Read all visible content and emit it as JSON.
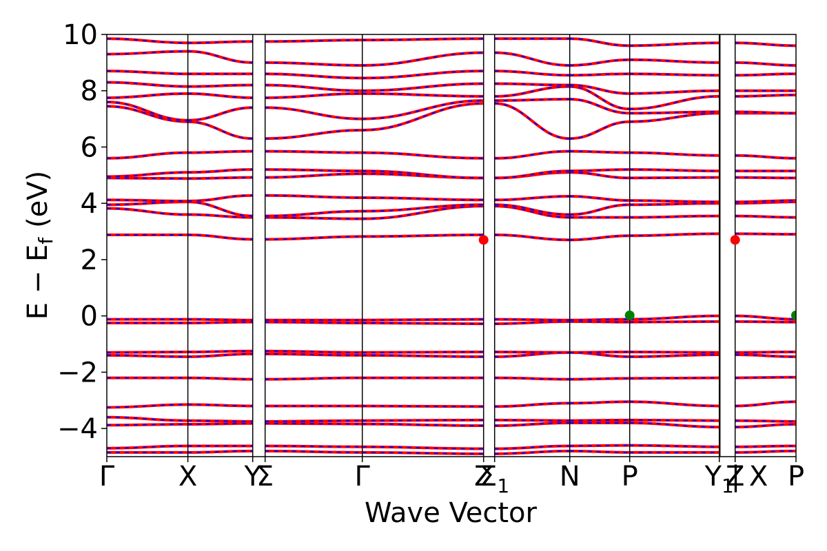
{
  "chart_data": {
    "type": "line",
    "title": "",
    "xlabel": "Wave Vector",
    "ylabel": "E − E",
    "ylabel_subscript": "f",
    "ylabel_unit": "(eV)",
    "ylim": [
      -5,
      10
    ],
    "yticks": [
      -4,
      -2,
      0,
      2,
      4,
      6,
      8,
      10
    ],
    "ytick_labels": [
      "−4",
      "−2",
      "0",
      "2",
      "4",
      "6",
      "8",
      "10"
    ],
    "xlim": [
      0,
      1
    ],
    "kpoints": [
      {
        "label": "Γ",
        "sub": "",
        "x": 0.0
      },
      {
        "label": "X",
        "sub": "",
        "x": 0.1176
      },
      {
        "label": "Y",
        "sub": "",
        "x": 0.2117
      },
      {
        "label": "Σ",
        "sub": "",
        "x": 0.2297
      },
      {
        "label": "Γ",
        "sub": "",
        "x": 0.3707
      },
      {
        "label": "Z",
        "sub": "",
        "x": 0.5467
      },
      {
        "label": "Σ",
        "sub": "1",
        "x": 0.5627
      },
      {
        "label": "N",
        "sub": "",
        "x": 0.6717
      },
      {
        "label": "P",
        "sub": "",
        "x": 0.7587
      },
      {
        "label": "Y",
        "sub": "1",
        "x": 0.8887
      },
      {
        "label": "Z",
        "sub": "",
        "x": 0.9117
      },
      {
        "label": "| X",
        "sub": "",
        "x": 0.9117
      },
      {
        "label": "P",
        "sub": "",
        "x": 1.0
      }
    ],
    "series": [
      {
        "color": "#ff0000",
        "style": "solid",
        "width": 4
      },
      {
        "color": "#0000ff",
        "style": "dashed",
        "width": 2
      }
    ],
    "band_segments": [
      [
        0.0,
        0.1176
      ],
      [
        0.1176,
        0.2117
      ],
      [
        0.2297,
        0.3707
      ],
      [
        0.3707,
        0.5467
      ],
      [
        0.5627,
        0.6717
      ],
      [
        0.6717,
        0.7587
      ],
      [
        0.7587,
        0.8887
      ],
      [
        0.9117,
        1.0
      ]
    ],
    "bands": [
      [
        -4.85,
        -4.85,
        -4.8,
        -4.85,
        -4.9,
        -4.8,
        -4.85,
        -4.85,
        -4.8
      ],
      [
        -4.7,
        -4.62,
        -4.62,
        -4.65,
        -4.72,
        -4.62,
        -4.6,
        -4.65,
        -4.62
      ],
      [
        -3.88,
        -3.85,
        -3.82,
        -3.84,
        -3.9,
        -3.8,
        -3.8,
        -3.95,
        -3.85
      ],
      [
        -3.6,
        -3.72,
        -3.75,
        -3.72,
        -3.7,
        -3.72,
        -3.7,
        -3.72,
        -3.75
      ],
      [
        -3.25,
        -3.15,
        -3.2,
        -3.2,
        -3.22,
        -3.1,
        -3.05,
        -3.2,
        -3.05
      ],
      [
        -2.2,
        -2.2,
        -2.25,
        -2.2,
        -2.2,
        -2.25,
        -2.22,
        -2.2,
        -2.18
      ],
      [
        -1.4,
        -1.45,
        -1.35,
        -1.4,
        -1.45,
        -1.3,
        -1.45,
        -1.38,
        -1.45
      ],
      [
        -1.3,
        -1.28,
        -1.25,
        -1.3,
        -1.28,
        -1.3,
        -1.28,
        -1.3,
        -1.28
      ],
      [
        -0.25,
        -0.25,
        -0.22,
        -0.25,
        -0.28,
        -0.2,
        -0.22,
        -0.2,
        -0.22
      ],
      [
        -0.12,
        -0.12,
        -0.15,
        -0.15,
        -0.12,
        -0.15,
        -0.12,
        0.0,
        -0.12
      ],
      [
        2.88,
        2.88,
        2.72,
        2.82,
        2.88,
        2.7,
        2.85,
        2.92,
        2.9
      ],
      [
        3.82,
        3.6,
        3.5,
        3.45,
        3.9,
        3.5,
        3.5,
        3.55,
        3.5
      ],
      [
        3.95,
        4.05,
        3.55,
        3.72,
        3.95,
        3.6,
        3.95,
        4.0,
        4.05
      ],
      [
        4.12,
        4.08,
        4.28,
        4.2,
        4.12,
        4.25,
        4.1,
        4.05,
        4.1
      ],
      [
        4.9,
        4.88,
        4.92,
        5.05,
        4.9,
        5.1,
        4.9,
        4.92,
        4.9
      ],
      [
        4.95,
        5.1,
        5.2,
        5.15,
        4.9,
        5.15,
        5.2,
        5.15,
        5.15
      ],
      [
        5.6,
        5.8,
        5.85,
        5.8,
        5.6,
        5.85,
        5.8,
        5.7,
        5.6
      ],
      [
        7.45,
        6.9,
        6.3,
        6.6,
        7.55,
        6.3,
        6.9,
        7.2,
        7.2
      ],
      [
        7.6,
        6.95,
        7.4,
        7.0,
        7.65,
        7.7,
        7.2,
        7.25,
        7.2
      ],
      [
        7.75,
        7.9,
        7.75,
        7.9,
        7.8,
        8.15,
        7.35,
        7.8,
        7.85
      ],
      [
        8.3,
        8.15,
        8.2,
        8.0,
        8.25,
        8.2,
        7.9,
        8.0,
        8.0
      ],
      [
        8.7,
        8.6,
        8.6,
        8.45,
        8.7,
        8.55,
        8.6,
        8.55,
        8.6
      ],
      [
        9.3,
        9.4,
        9.0,
        8.9,
        9.35,
        8.9,
        9.1,
        9.0,
        8.9
      ],
      [
        9.85,
        9.7,
        9.75,
        9.8,
        9.85,
        9.85,
        9.6,
        9.7,
        9.6
      ]
    ],
    "markers": [
      {
        "x": 0.5467,
        "y": 2.7,
        "color": "#ff0000"
      },
      {
        "x": 0.9117,
        "y": 2.7,
        "color": "#ff0000"
      },
      {
        "x": 0.7587,
        "y": 0.02,
        "color": "#008000"
      },
      {
        "x": 1.0,
        "y": 0.02,
        "color": "#008000"
      }
    ],
    "grid": false,
    "legend": "none"
  }
}
